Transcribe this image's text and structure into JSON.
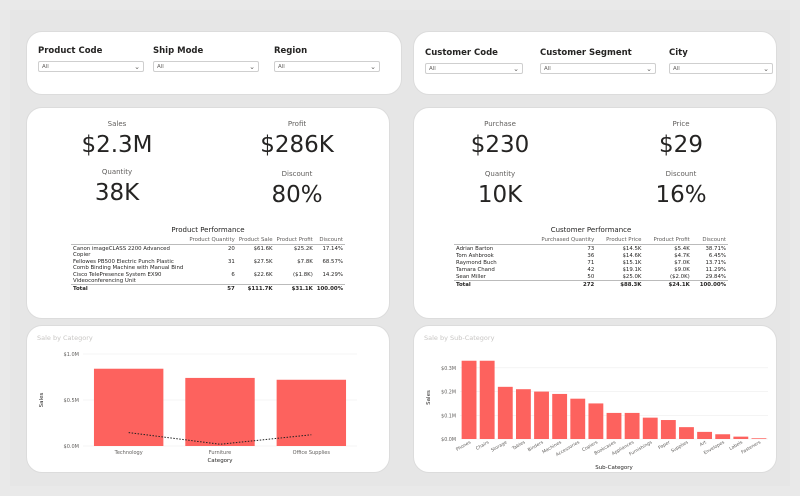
{
  "filters_left": [
    {
      "label": "Product Code",
      "value": "All"
    },
    {
      "label": "Ship Mode",
      "value": "All"
    },
    {
      "label": "Region",
      "value": "All"
    }
  ],
  "filters_right": [
    {
      "label": "Customer Code",
      "value": "All"
    },
    {
      "label": "Customer Segment",
      "value": "All"
    },
    {
      "label": "City",
      "value": "All"
    }
  ],
  "kpis_left": {
    "sales": {
      "label": "Sales",
      "value": "$2.3M"
    },
    "profit": {
      "label": "Profit",
      "value": "$286K"
    },
    "quantity": {
      "label": "Quantity",
      "value": "38K"
    },
    "discount": {
      "label": "Discount",
      "value": "80%"
    }
  },
  "kpis_right": {
    "purchase": {
      "label": "Purchase",
      "value": "$230"
    },
    "price": {
      "label": "Price",
      "value": "$29"
    },
    "quantity": {
      "label": "Quantity",
      "value": "10K"
    },
    "discount": {
      "label": "Discount",
      "value": "16%"
    }
  },
  "product_table": {
    "title": "Product Performance",
    "headers": [
      "",
      "Product Quantity",
      "Product Sale",
      "Product Profit",
      "Discount"
    ],
    "rows": [
      [
        "Canon imageCLASS 2200 Advanced Copier",
        "20",
        "$61.6K",
        "$25.2K",
        "17.14%"
      ],
      [
        "Fellowes PB500 Electric Punch Plastic Comb Binding Machine with Manual Bind",
        "31",
        "$27.5K",
        "$7.8K",
        "68.57%"
      ],
      [
        "Cisco TelePresence System EX90 Videoconferencing Unit",
        "6",
        "$22.6K",
        "($1.8K)",
        "14.29%"
      ]
    ],
    "total": [
      "Total",
      "57",
      "$111.7K",
      "$31.1K",
      "100.00%"
    ]
  },
  "customer_table": {
    "title": "Customer Performance",
    "headers": [
      "",
      "Purchased Quantity",
      "Product Price",
      "Product Profit",
      "Discount"
    ],
    "rows": [
      [
        "Adrian Barton",
        "73",
        "$14.5K",
        "$5.4K",
        "38.71%"
      ],
      [
        "Tom Ashbrook",
        "36",
        "$14.6K",
        "$4.7K",
        "6.45%"
      ],
      [
        "Raymond Buch",
        "71",
        "$15.1K",
        "$7.0K",
        "13.71%"
      ],
      [
        "Tamara Chand",
        "42",
        "$19.1K",
        "$9.0K",
        "11.29%"
      ],
      [
        "Sean Miller",
        "50",
        "$25.0K",
        "($2.0K)",
        "29.84%"
      ]
    ],
    "total": [
      "Total",
      "272",
      "$88.3K",
      "$24.1K",
      "100.00%"
    ]
  },
  "chart_data": [
    {
      "type": "bar",
      "title": "Sale by Category",
      "xlabel": "Category",
      "ylabel": "Sales",
      "categories": [
        "Technology",
        "Furniture",
        "Office Supplies"
      ],
      "values": [
        0.84,
        0.74,
        0.72
      ],
      "ylim": [
        0,
        1.0
      ],
      "yticks": [
        "$0.0M",
        "$0.5M",
        "$1.0M"
      ],
      "line_values": [
        0.146,
        0.019,
        0.122
      ],
      "bar_color": "#fd625e"
    },
    {
      "type": "bar",
      "title": "Sale by Sub-Category",
      "xlabel": "Sub-Category",
      "ylabel": "Sales",
      "categories": [
        "Phones",
        "Chairs",
        "Storage",
        "Tables",
        "Binders",
        "Machines",
        "Accessories",
        "Copiers",
        "Bookcases",
        "Appliances",
        "Furnishings",
        "Paper",
        "Supplies",
        "Art",
        "Envelopes",
        "Labels",
        "Fasteners"
      ],
      "values": [
        0.33,
        0.33,
        0.22,
        0.21,
        0.2,
        0.19,
        0.17,
        0.15,
        0.11,
        0.11,
        0.09,
        0.08,
        0.05,
        0.03,
        0.02,
        0.01,
        0.003
      ],
      "ylim": [
        0,
        0.35
      ],
      "yticks": [
        "$0.0M",
        "$0.1M",
        "$0.2M",
        "$0.3M"
      ],
      "bar_color": "#fd625e"
    }
  ]
}
